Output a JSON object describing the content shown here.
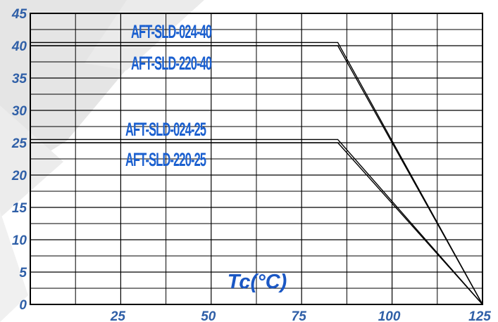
{
  "chart_data": {
    "type": "line",
    "title": "",
    "xlabel": "Tc(°C)",
    "ylabel": "",
    "x_ticks": [
      "25",
      "50",
      "75",
      "100",
      "125"
    ],
    "y_ticks": [
      "0",
      "5",
      "10",
      "15",
      "20",
      "25",
      "30",
      "35",
      "40",
      "45"
    ],
    "xlim": [
      0,
      125
    ],
    "ylim": [
      0,
      45
    ],
    "grid": true,
    "series": [
      {
        "name": "AFT-SLD-024-40",
        "x": [
          0,
          85,
          125
        ],
        "y": [
          40.5,
          40.5,
          0
        ]
      },
      {
        "name": "AFT-SLD-220-40",
        "x": [
          0,
          85,
          125
        ],
        "y": [
          40,
          40,
          0
        ]
      },
      {
        "name": "AFT-SLD-024-25",
        "x": [
          0,
          85,
          125
        ],
        "y": [
          25.5,
          25.5,
          0
        ]
      },
      {
        "name": "AFT-SLD-220-25",
        "x": [
          0,
          85,
          125
        ],
        "y": [
          25,
          25,
          0
        ]
      }
    ],
    "colors": {
      "tick_labels": "#2f5fa7",
      "axis_title": "#1a57c4",
      "series_labels": "#1a5fcf",
      "grid": "#000000",
      "curves": "#000000",
      "watermark": "#e5e5e5"
    }
  }
}
